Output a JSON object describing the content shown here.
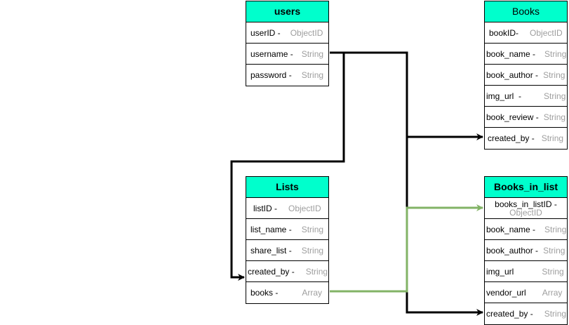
{
  "colors": {
    "header": "#00ffcc",
    "type_text": "#9e9e9e",
    "link_black": "#000000",
    "link_green": "#82b366"
  },
  "tables": {
    "users": {
      "title": "users",
      "rows": [
        {
          "key": "userID -",
          "type": "ObjectID"
        },
        {
          "key": "username -",
          "type": "String"
        },
        {
          "key": "password -",
          "type": "String"
        }
      ]
    },
    "books": {
      "title": "Books",
      "rows": [
        {
          "key": "bookID-",
          "type": "ObjectID"
        },
        {
          "key": "book_name -",
          "type": "String"
        },
        {
          "key": "book_author -",
          "type": "String"
        },
        {
          "key": "img_url  -",
          "type": "String"
        },
        {
          "key": "book_review -",
          "type": "String"
        },
        {
          "key": "created_by -",
          "type": "String"
        }
      ]
    },
    "lists": {
      "title": "Lists",
      "rows": [
        {
          "key": "listID -",
          "type": "ObjectID"
        },
        {
          "key": "list_name -",
          "type": "String"
        },
        {
          "key": "share_list -",
          "type": "String"
        },
        {
          "key": "created_by -",
          "type": "String"
        },
        {
          "key": "books -",
          "type": "Array"
        }
      ]
    },
    "books_in_list": {
      "title": "Books_in_list",
      "rows": [
        {
          "key": "books_in_listID -",
          "type": "ObjectID"
        },
        {
          "key": "book_name -",
          "type": "String"
        },
        {
          "key": "book_author -",
          "type": "String"
        },
        {
          "key": "img_url",
          "type": "String"
        },
        {
          "key": "vendor_url",
          "type": "Array"
        },
        {
          "key": "created_by -",
          "type": "String"
        }
      ]
    }
  },
  "links": [
    {
      "from": "users.username",
      "to": "books.created_by",
      "color": "black"
    },
    {
      "from": "users.username",
      "to": "books_in_list.created_by",
      "color": "black"
    },
    {
      "from": "users.username",
      "to": "lists.created_by",
      "color": "black"
    },
    {
      "from": "lists.books",
      "to": "books_in_list.books_in_listID",
      "color": "green"
    }
  ]
}
